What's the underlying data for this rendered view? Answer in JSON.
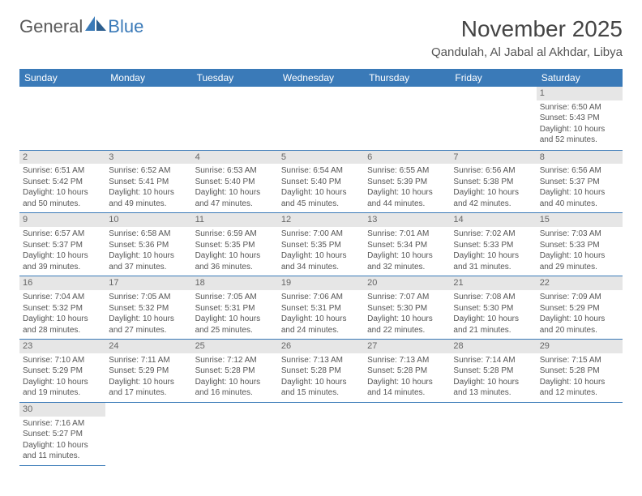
{
  "logo": {
    "text1": "General",
    "text2": "Blue"
  },
  "title": "November 2025",
  "location": "Qandulah, Al Jabal al Akhdar, Libya",
  "header_bg": "#3a7ab8",
  "weekdays": [
    "Sunday",
    "Monday",
    "Tuesday",
    "Wednesday",
    "Thursday",
    "Friday",
    "Saturday"
  ],
  "weeks": [
    [
      null,
      null,
      null,
      null,
      null,
      null,
      {
        "n": "1",
        "sr": "6:50 AM",
        "ss": "5:43 PM",
        "dl": "10 hours and 52 minutes."
      }
    ],
    [
      {
        "n": "2",
        "sr": "6:51 AM",
        "ss": "5:42 PM",
        "dl": "10 hours and 50 minutes."
      },
      {
        "n": "3",
        "sr": "6:52 AM",
        "ss": "5:41 PM",
        "dl": "10 hours and 49 minutes."
      },
      {
        "n": "4",
        "sr": "6:53 AM",
        "ss": "5:40 PM",
        "dl": "10 hours and 47 minutes."
      },
      {
        "n": "5",
        "sr": "6:54 AM",
        "ss": "5:40 PM",
        "dl": "10 hours and 45 minutes."
      },
      {
        "n": "6",
        "sr": "6:55 AM",
        "ss": "5:39 PM",
        "dl": "10 hours and 44 minutes."
      },
      {
        "n": "7",
        "sr": "6:56 AM",
        "ss": "5:38 PM",
        "dl": "10 hours and 42 minutes."
      },
      {
        "n": "8",
        "sr": "6:56 AM",
        "ss": "5:37 PM",
        "dl": "10 hours and 40 minutes."
      }
    ],
    [
      {
        "n": "9",
        "sr": "6:57 AM",
        "ss": "5:37 PM",
        "dl": "10 hours and 39 minutes."
      },
      {
        "n": "10",
        "sr": "6:58 AM",
        "ss": "5:36 PM",
        "dl": "10 hours and 37 minutes."
      },
      {
        "n": "11",
        "sr": "6:59 AM",
        "ss": "5:35 PM",
        "dl": "10 hours and 36 minutes."
      },
      {
        "n": "12",
        "sr": "7:00 AM",
        "ss": "5:35 PM",
        "dl": "10 hours and 34 minutes."
      },
      {
        "n": "13",
        "sr": "7:01 AM",
        "ss": "5:34 PM",
        "dl": "10 hours and 32 minutes."
      },
      {
        "n": "14",
        "sr": "7:02 AM",
        "ss": "5:33 PM",
        "dl": "10 hours and 31 minutes."
      },
      {
        "n": "15",
        "sr": "7:03 AM",
        "ss": "5:33 PM",
        "dl": "10 hours and 29 minutes."
      }
    ],
    [
      {
        "n": "16",
        "sr": "7:04 AM",
        "ss": "5:32 PM",
        "dl": "10 hours and 28 minutes."
      },
      {
        "n": "17",
        "sr": "7:05 AM",
        "ss": "5:32 PM",
        "dl": "10 hours and 27 minutes."
      },
      {
        "n": "18",
        "sr": "7:05 AM",
        "ss": "5:31 PM",
        "dl": "10 hours and 25 minutes."
      },
      {
        "n": "19",
        "sr": "7:06 AM",
        "ss": "5:31 PM",
        "dl": "10 hours and 24 minutes."
      },
      {
        "n": "20",
        "sr": "7:07 AM",
        "ss": "5:30 PM",
        "dl": "10 hours and 22 minutes."
      },
      {
        "n": "21",
        "sr": "7:08 AM",
        "ss": "5:30 PM",
        "dl": "10 hours and 21 minutes."
      },
      {
        "n": "22",
        "sr": "7:09 AM",
        "ss": "5:29 PM",
        "dl": "10 hours and 20 minutes."
      }
    ],
    [
      {
        "n": "23",
        "sr": "7:10 AM",
        "ss": "5:29 PM",
        "dl": "10 hours and 19 minutes."
      },
      {
        "n": "24",
        "sr": "7:11 AM",
        "ss": "5:29 PM",
        "dl": "10 hours and 17 minutes."
      },
      {
        "n": "25",
        "sr": "7:12 AM",
        "ss": "5:28 PM",
        "dl": "10 hours and 16 minutes."
      },
      {
        "n": "26",
        "sr": "7:13 AM",
        "ss": "5:28 PM",
        "dl": "10 hours and 15 minutes."
      },
      {
        "n": "27",
        "sr": "7:13 AM",
        "ss": "5:28 PM",
        "dl": "10 hours and 14 minutes."
      },
      {
        "n": "28",
        "sr": "7:14 AM",
        "ss": "5:28 PM",
        "dl": "10 hours and 13 minutes."
      },
      {
        "n": "29",
        "sr": "7:15 AM",
        "ss": "5:28 PM",
        "dl": "10 hours and 12 minutes."
      }
    ],
    [
      {
        "n": "30",
        "sr": "7:16 AM",
        "ss": "5:27 PM",
        "dl": "10 hours and 11 minutes."
      },
      null,
      null,
      null,
      null,
      null,
      null
    ]
  ],
  "labels": {
    "sunrise": "Sunrise: ",
    "sunset": "Sunset: ",
    "daylight": "Daylight: "
  }
}
